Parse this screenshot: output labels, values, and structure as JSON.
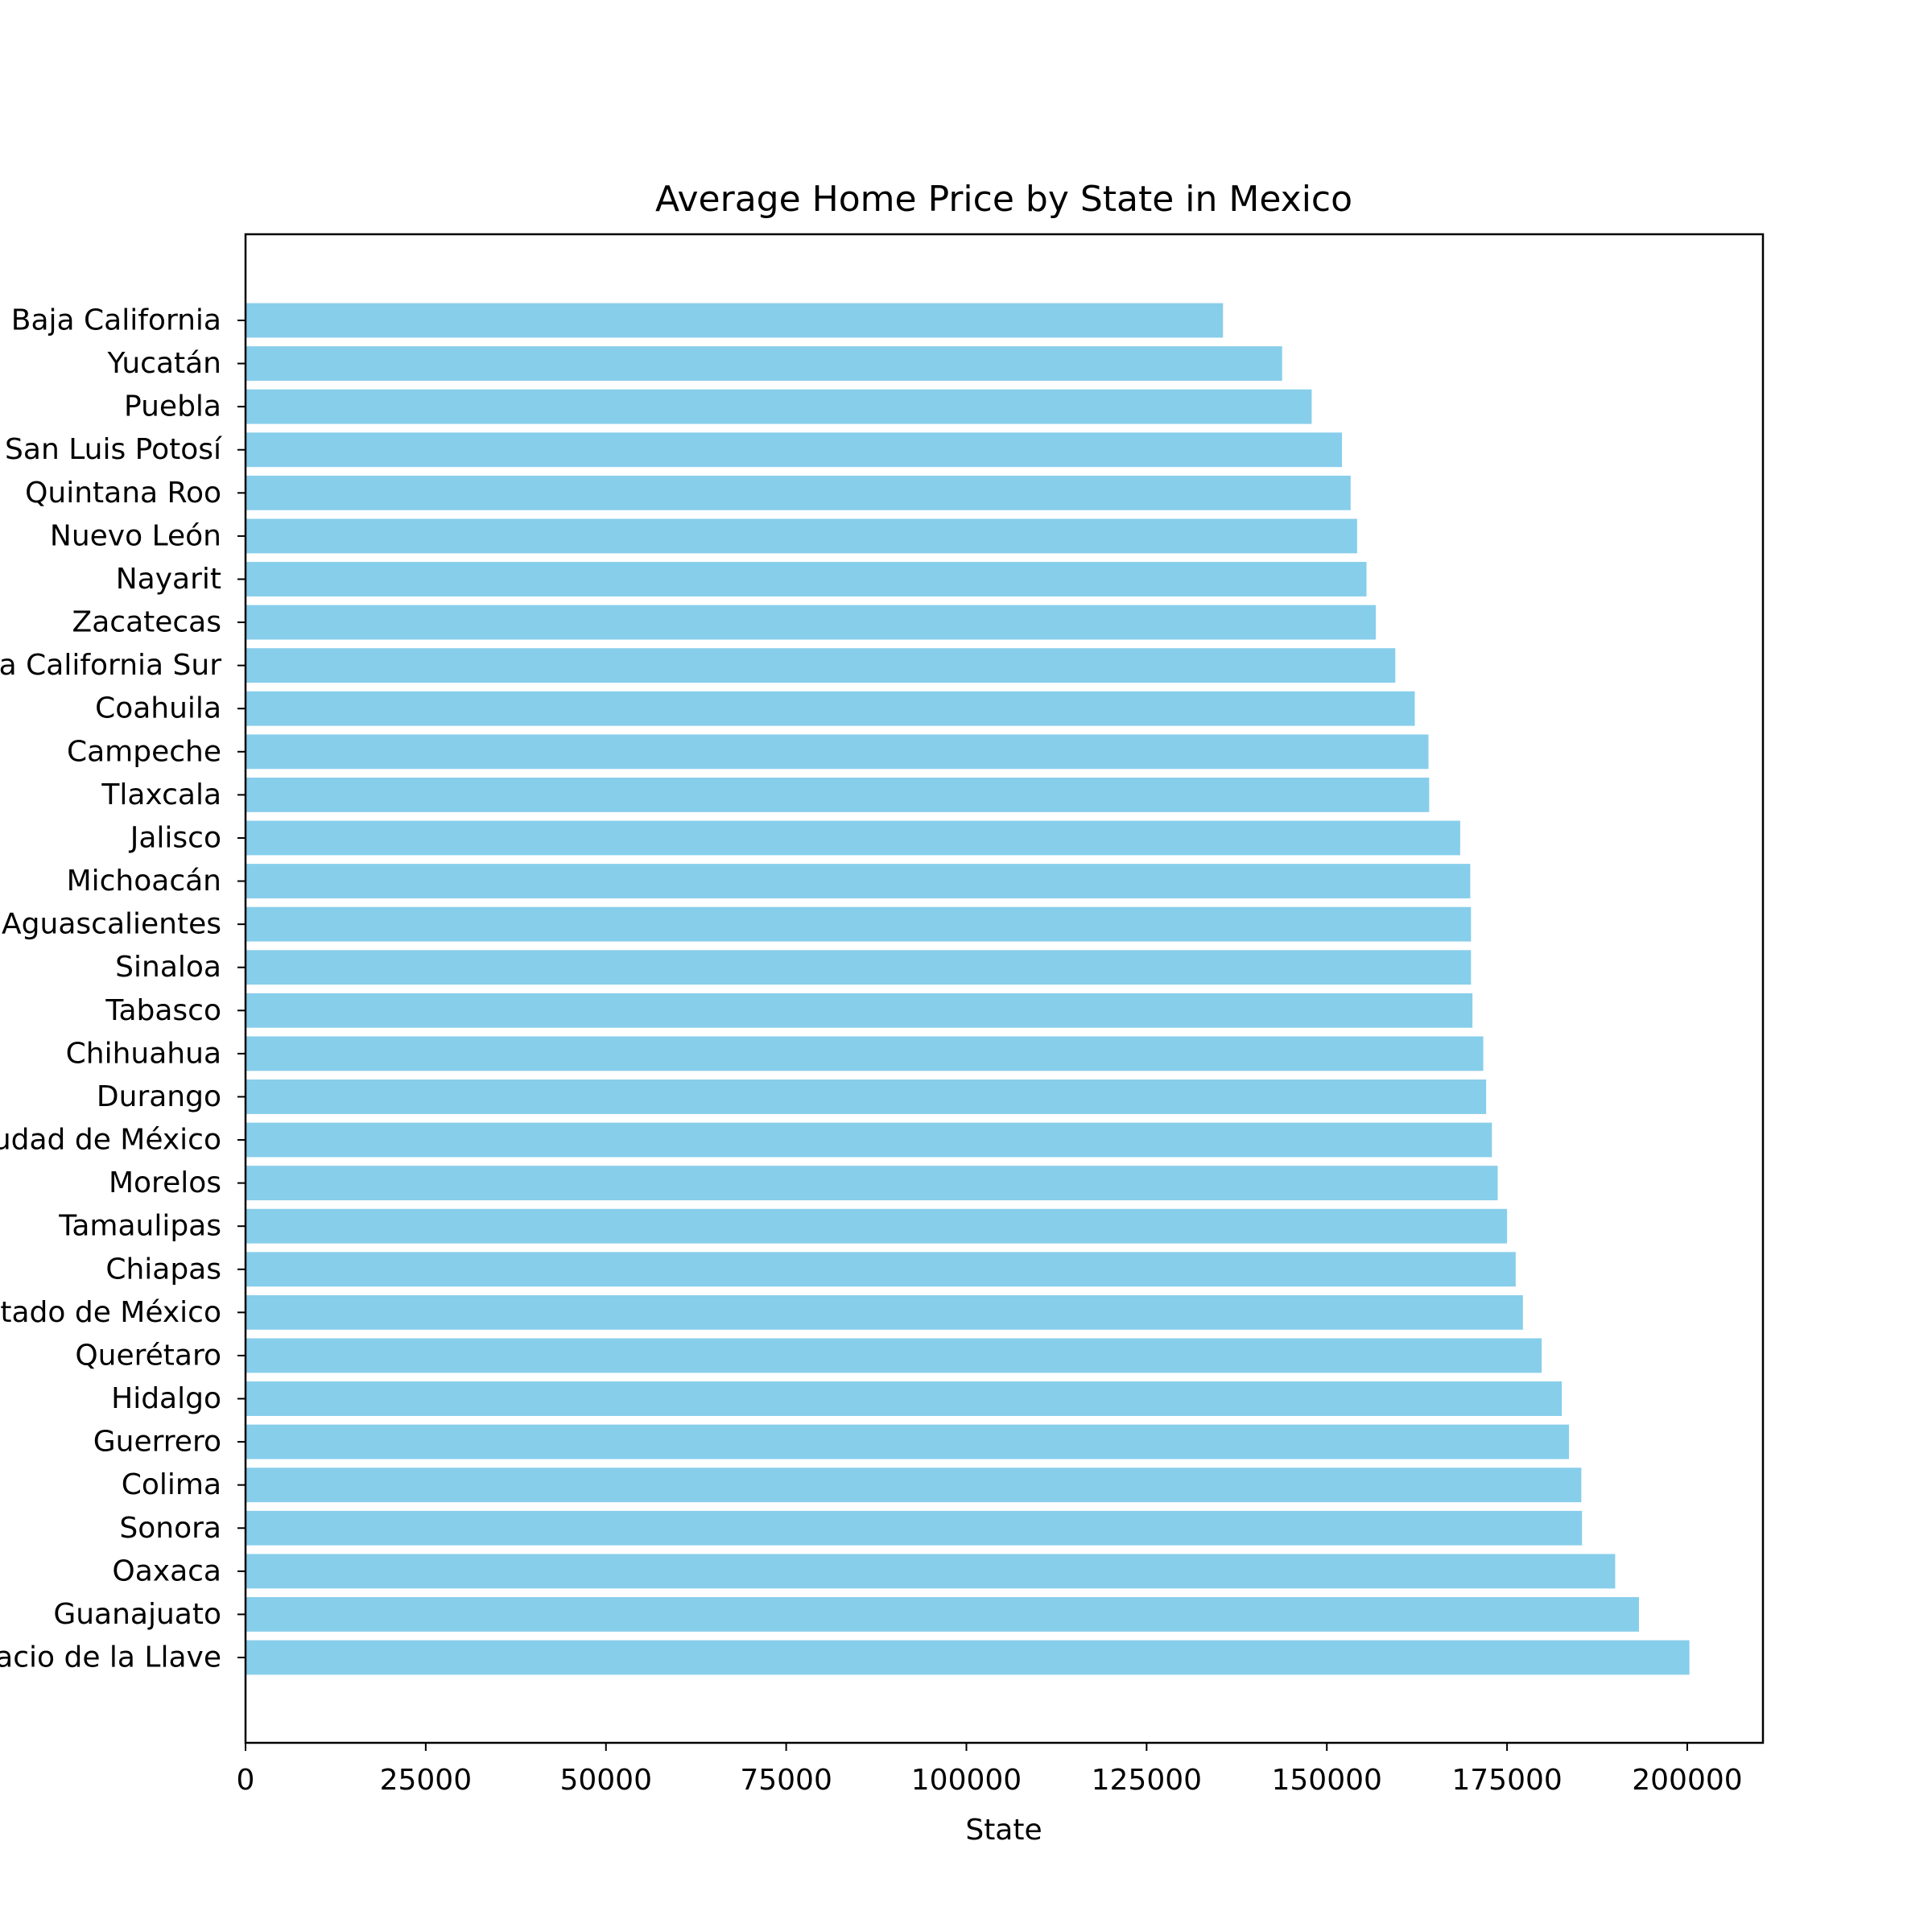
{
  "chart_data": {
    "type": "bar",
    "orientation": "horizontal",
    "title": "Average Home Price by State in Mexico",
    "xlabel": "State",
    "ylabel": "",
    "xlim": [
      0,
      210500
    ],
    "xticks": [
      0,
      25000,
      50000,
      75000,
      100000,
      125000,
      150000,
      175000,
      200000
    ],
    "bar_color": "#87CEEB",
    "grid": false,
    "categories": [
      "Baja California",
      "Yucatán",
      "Puebla",
      "San Luis Potosí",
      "Quintana Roo",
      "Nuevo León",
      "Nayarit",
      "Zacatecas",
      "Baja California Sur",
      "Coahuila",
      "Campeche",
      "Tlaxcala",
      "Jalisco",
      "Michoacán",
      "Aguascalientes",
      "Sinaloa",
      "Tabasco",
      "Chihuahua",
      "Durango",
      "Ciudad de México",
      "Morelos",
      "Tamaulipas",
      "Chiapas",
      "Estado de México",
      "Querétaro",
      "Hidalgo",
      "Guerrero",
      "Colima",
      "Sonora",
      "Oaxaca",
      "Guanajuato",
      "Veracruz de Ignacio de la Llave"
    ],
    "values": [
      135600,
      143800,
      147900,
      152100,
      153300,
      154200,
      155500,
      156800,
      159500,
      162200,
      164100,
      164200,
      168500,
      169900,
      170000,
      170000,
      170200,
      171700,
      172100,
      172900,
      173700,
      175000,
      176200,
      177200,
      179800,
      182600,
      183600,
      185300,
      185400,
      190000,
      193300,
      200300
    ]
  }
}
